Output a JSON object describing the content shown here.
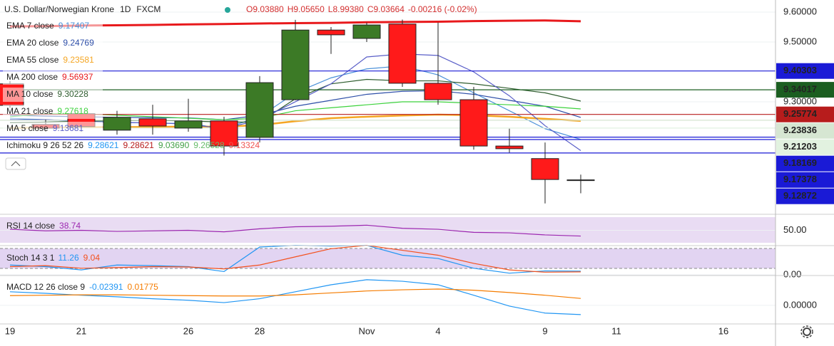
{
  "chart_data": [
    {
      "type": "candlestick",
      "title": "U.S. Dollar/Norwegian Krone",
      "interval": "1D",
      "source": "FXCM",
      "ohlc_labels": [
        "O9.03880",
        "H9.05650",
        "L8.99380",
        "C9.03664"
      ],
      "change": "-0.00216 (-0.02%)",
      "categories": [
        "19",
        null,
        "21",
        null,
        null,
        "26",
        null,
        "28",
        null,
        null,
        "Nov",
        null,
        "4",
        null,
        null,
        "9",
        null,
        "11",
        null,
        null,
        "16"
      ],
      "open": [
        9.36,
        9.224,
        9.26,
        9.205,
        9.243,
        9.212,
        9.236,
        9.181,
        9.307,
        9.54,
        9.512,
        9.56,
        9.362,
        9.307,
        9.152,
        9.11,
        9.0388,
        null,
        null,
        null,
        null
      ],
      "high": [
        9.37,
        9.24,
        9.28,
        9.27,
        9.29,
        9.31,
        9.25,
        9.386,
        9.574,
        9.55,
        9.565,
        9.575,
        9.565,
        9.35,
        9.21,
        9.164,
        9.0565,
        null,
        null,
        null,
        null
      ],
      "low": [
        9.28,
        9.2,
        9.2,
        9.19,
        9.19,
        9.2,
        9.12,
        9.164,
        9.305,
        9.46,
        9.5,
        9.35,
        9.29,
        9.14,
        9.13,
        8.96,
        8.9938,
        null,
        null,
        null,
        null
      ],
      "close": [
        9.288,
        9.212,
        9.217,
        9.248,
        9.219,
        9.236,
        9.152,
        9.364,
        9.54,
        9.524,
        9.557,
        9.362,
        9.307,
        9.152,
        9.143,
        9.04,
        9.03664,
        null,
        null,
        null,
        null
      ],
      "up_color": "#3c7a26",
      "down_color": "#ff1a1a",
      "ylim": [
        8.926,
        9.6405
      ],
      "yticks": [
        {
          "value": 9.6,
          "label": "9.60000"
        },
        {
          "value": 9.5,
          "label": "9.50000"
        },
        {
          "value": 9.3,
          "label": "9.30000"
        }
      ],
      "series": [
        {
          "name": "EMA 7 close",
          "legend_value": "9.17407",
          "color": "#4a90d9",
          "values": [
            9.245,
            9.24,
            9.235,
            9.232,
            9.228,
            9.228,
            9.21,
            9.25,
            9.33,
            9.38,
            9.41,
            9.42,
            9.39,
            9.33,
            9.27,
            9.21,
            9.17407,
            null,
            null,
            null,
            null
          ]
        },
        {
          "name": "EMA 20 close",
          "legend_value": "9.24769",
          "color": "#2e4fa8",
          "values": [
            9.255,
            9.252,
            9.25,
            9.248,
            9.247,
            9.246,
            9.24,
            9.255,
            9.285,
            9.305,
            9.325,
            9.335,
            9.337,
            9.325,
            9.305,
            9.285,
            9.24769,
            null,
            null,
            null,
            null
          ]
        },
        {
          "name": "EMA 55 close",
          "legend_value": "9.23581",
          "color": "#f5a623",
          "values": [
            9.212,
            9.213,
            9.214,
            9.215,
            9.216,
            9.217,
            9.217,
            9.222,
            9.235,
            9.245,
            9.25,
            9.254,
            9.257,
            9.255,
            9.25,
            9.243,
            9.23581,
            null,
            null,
            null,
            null
          ]
        },
        {
          "name": "MA 200 close",
          "legend_value": "9.56937",
          "color": "#e8191c",
          "values": [
            9.552,
            9.553,
            9.555,
            9.556,
            9.557,
            9.559,
            9.56,
            9.562,
            9.563,
            9.564,
            9.566,
            9.567,
            9.568,
            9.57,
            9.571,
            9.572,
            9.56937,
            null,
            null,
            null,
            null
          ]
        },
        {
          "name": "MA 10 close",
          "legend_value": "9.30228",
          "color": "#2f5d2f",
          "values": [
            9.23,
            9.232,
            9.235,
            9.237,
            9.238,
            9.236,
            9.232,
            9.232,
            9.31,
            9.36,
            9.375,
            9.37,
            9.37,
            9.36,
            9.345,
            9.33,
            9.30228,
            null,
            null,
            null,
            null
          ]
        },
        {
          "name": "MA 21 close",
          "legend_value": "9.27618",
          "color": "#3cd23c",
          "values": [
            9.25,
            9.26,
            9.26,
            9.255,
            9.25,
            9.245,
            9.24,
            9.245,
            9.27,
            9.28,
            9.29,
            9.3,
            9.3,
            9.295,
            9.29,
            9.285,
            9.27618,
            null,
            null,
            null,
            null
          ]
        },
        {
          "name": "MA 5 close",
          "legend_value": "9.13681",
          "color": "#5a5fc8",
          "values": [
            9.24,
            9.24,
            9.235,
            9.23,
            9.23,
            9.225,
            9.21,
            9.24,
            9.3,
            9.36,
            9.45,
            9.46,
            9.455,
            9.4,
            9.32,
            9.22,
            9.13681,
            null,
            null,
            null,
            null
          ]
        }
      ],
      "ichimoku": {
        "name": "Ichimoku 9 26 52 26",
        "values": [
          "9.28621",
          "9.28621",
          "9.03690",
          "9.26528",
          "9.13324"
        ],
        "colors": [
          "#2196f3",
          "#b71c1c",
          "#43a047",
          "#66bb6a",
          "#ef5350"
        ]
      },
      "levels": [
        {
          "value": 9.40303,
          "label": "9.40303",
          "color": "#1a1ad6",
          "text_color": "#ffffff"
        },
        {
          "value": 9.34017,
          "label": "9.34017",
          "color": "#1b5e20",
          "text_color": "#ffffff"
        },
        {
          "value": 9.25774,
          "label": "9.25774",
          "color": "#b71c1c",
          "text_color": "#ffffff"
        },
        {
          "value": 9.23836,
          "label": "9.23836",
          "color": "#d6e6d2",
          "text_color": "#111111"
        },
        {
          "value": 9.21203,
          "label": "9.21203",
          "color": "#e2f2e0",
          "text_color": "#111111"
        },
        {
          "value": 9.18169,
          "label": "9.18169",
          "color": "#1a1ad6",
          "text_color": "#ffffff"
        },
        {
          "value": 9.17378,
          "label": "9.17378",
          "color": "#1a1ad6",
          "text_color": "#ffffff"
        },
        {
          "value": 9.12872,
          "label": "9.12872",
          "color": "#1a1ad6",
          "text_color": "#ffffff"
        }
      ]
    },
    {
      "type": "line",
      "title": "RSI 14 close",
      "ylim": [
        20,
        80
      ],
      "yticks": [
        {
          "value": 50,
          "label": "50.00"
        }
      ],
      "series": [
        {
          "legend_value": "38.74",
          "color": "#9c27b0",
          "values": [
            52,
            49,
            50,
            48,
            49,
            50,
            47,
            53,
            57,
            58,
            60,
            54,
            52,
            46,
            45,
            41,
            38.74
          ]
        }
      ]
    },
    {
      "type": "line",
      "title": "Stoch 14 3 1",
      "ylim": [
        0,
        85
      ],
      "yticks": [
        {
          "value": 0,
          "label": "0.00"
        }
      ],
      "series": [
        {
          "legend_value": "11.26",
          "color": "#2196f3",
          "values": [
            30,
            25,
            15,
            30,
            28,
            25,
            10,
            85,
            90,
            88,
            90,
            60,
            50,
            20,
            5,
            12,
            11.26
          ]
        },
        {
          "legend_value": "9.04",
          "color": "#f4511e",
          "values": [
            25,
            28,
            20,
            22,
            25,
            24,
            18,
            30,
            55,
            80,
            90,
            75,
            60,
            35,
            15,
            8,
            9.04
          ]
        }
      ]
    },
    {
      "type": "line",
      "title": "MACD 12 26 close 9",
      "ylim": [
        -0.048,
        0.075
      ],
      "yticks": [
        {
          "value": 0,
          "label": "0.00000"
        }
      ],
      "series": [
        {
          "legend_value": "-0.02391",
          "color": "#2196f3",
          "values": [
            0.035,
            0.031,
            0.026,
            0.022,
            0.017,
            0.013,
            0.007,
            0.017,
            0.035,
            0.053,
            0.066,
            0.062,
            0.053,
            0.026,
            -0.002,
            -0.02,
            -0.02391
          ]
        },
        {
          "legend_value": "0.01775",
          "color": "#f57c00",
          "values": [
            0.025,
            0.026,
            0.027,
            0.027,
            0.026,
            0.025,
            0.024,
            0.024,
            0.027,
            0.032,
            0.037,
            0.04,
            0.042,
            0.039,
            0.033,
            0.026,
            0.01775
          ]
        }
      ]
    }
  ]
}
